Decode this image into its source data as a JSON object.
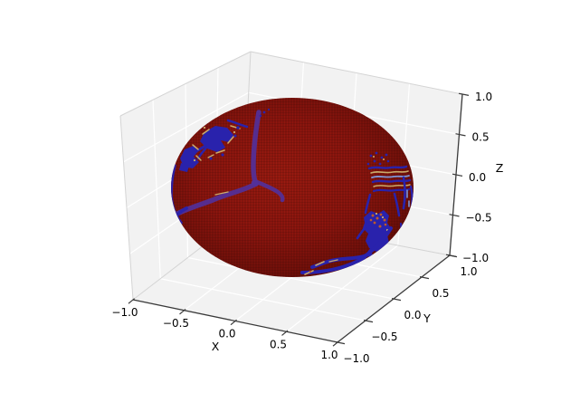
{
  "figure": {
    "background_color": "#ffffff",
    "title": ""
  },
  "chart_data": {
    "type": "3d_surface",
    "title": "",
    "axes": {
      "x": {
        "label": "X",
        "tick_labels": [
          "−1.0",
          "−0.5",
          "0.0",
          "0.5",
          "1.0"
        ],
        "tick_values": [
          -1.0,
          -0.5,
          0.0,
          0.5,
          1.0
        ],
        "range": [
          -1.0,
          1.0
        ]
      },
      "y": {
        "label": "Y",
        "tick_labels": [
          "−1.0",
          "−0.5",
          "0.0",
          "0.5",
          "1.0"
        ],
        "tick_values": [
          -1.0,
          -0.5,
          0.0,
          0.5,
          1.0
        ],
        "range": [
          -1.0,
          1.0
        ]
      },
      "z": {
        "label": "Z",
        "tick_labels": [
          "−1.0",
          "−0.5",
          "0.0",
          "0.5",
          "1.0"
        ],
        "tick_values": [
          -1.0,
          -0.5,
          0.0,
          0.5,
          1.0
        ],
        "range": [
          -1.0,
          1.0
        ]
      }
    },
    "grid": true,
    "legend": false,
    "pane_color": "#f2f2f2",
    "grid_color": "#ffffff",
    "pane_edge_color": "#d4d4d4",
    "axis_line_color": "#3a3a3a",
    "tick_label_color": "#000000",
    "surface": {
      "shape": "unit_sphere",
      "radius": 1.0,
      "base_color": "#8e150e",
      "highlight_color": "#9d1b10",
      "shadow_color": "#570b06",
      "mesh_line_color": "#3c0604",
      "basin_color": "#2922ac",
      "band_color": "#52309a",
      "accent_tan": "#c9a96a",
      "accent_light_blue": "#7f95d6",
      "accent_orange": "#bf5a28",
      "features": [
        "blue blob cluster with tan fringe on upper-left of sphere",
        "dark meridian band from top center splitting into left and right branches",
        "blue arc along left limb",
        "wavy blue/tan/light-blue striped region on right side",
        "speckled blue blob with orange dots at lower right",
        "blue band hugging the lower-right limb"
      ]
    }
  }
}
